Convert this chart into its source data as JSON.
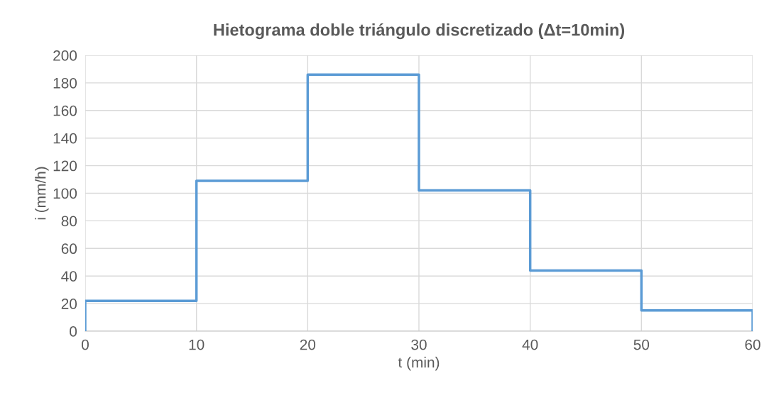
{
  "chart_data": {
    "type": "step",
    "title": "Hietograma doble triángulo discretizado (Δt=10min)",
    "xlabel": "t (min)",
    "ylabel": "i (mm/h)",
    "series": [
      {
        "color": "#5b9bd5",
        "x": [
          0,
          0,
          10,
          20,
          30,
          40,
          50,
          60,
          60
        ],
        "values": [
          0,
          22,
          109,
          186,
          102,
          44,
          15,
          15,
          0
        ]
      }
    ],
    "xlim": [
      0,
      60
    ],
    "xticks": [
      0,
      10,
      20,
      30,
      40,
      50,
      60
    ],
    "ylim": [
      0,
      200
    ],
    "yticks": [
      0,
      20,
      40,
      60,
      80,
      100,
      120,
      140,
      160,
      180,
      200
    ],
    "grid": true
  }
}
